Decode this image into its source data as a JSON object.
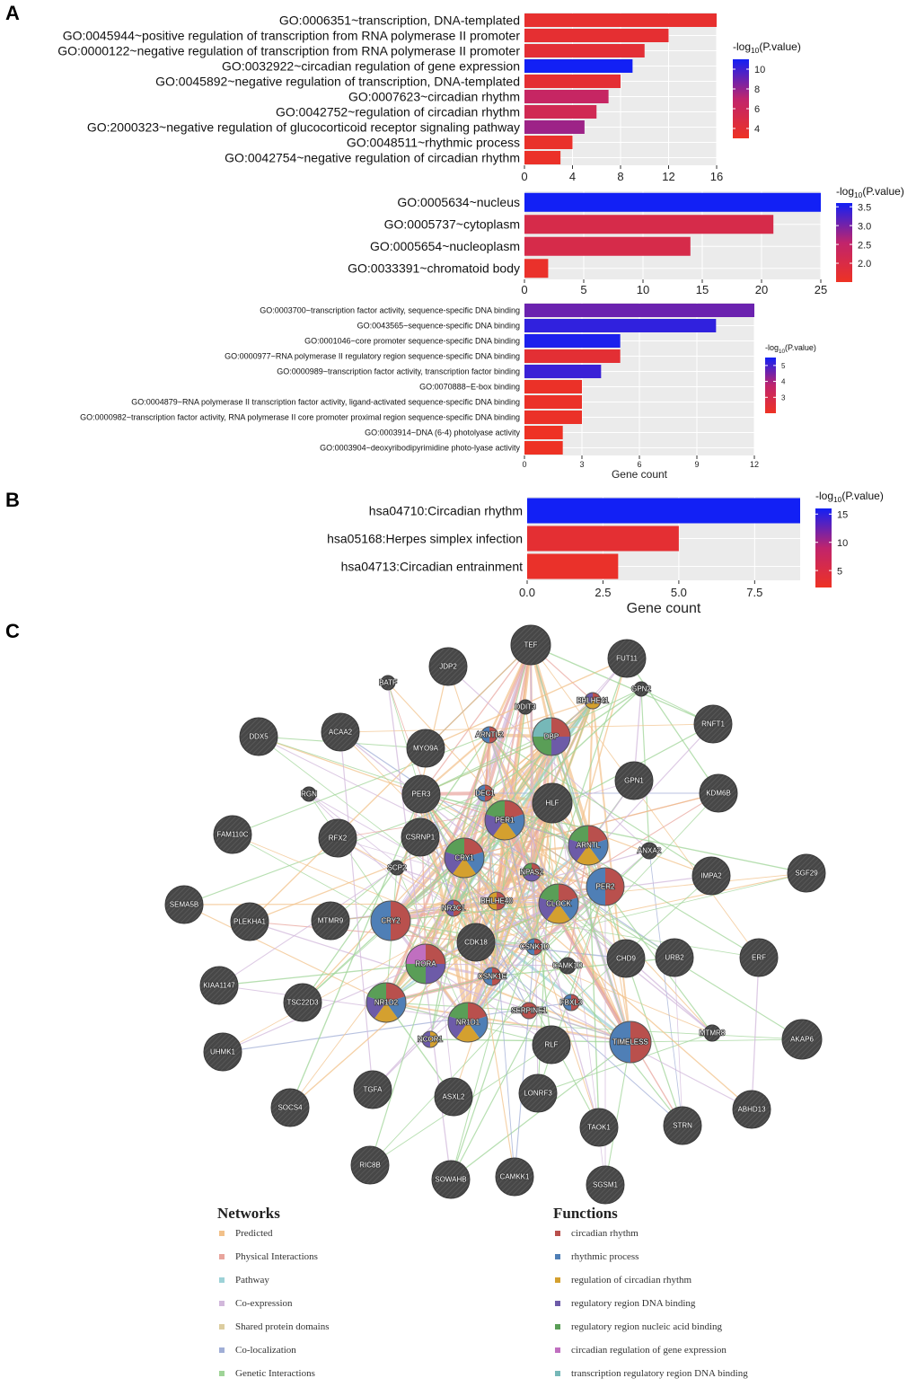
{
  "panel_labels": [
    "A",
    "B",
    "C"
  ],
  "colors": {
    "low_p": "#ee3224",
    "mid_p": "#c0246c",
    "high_p": "#1220f5",
    "panel_bg": "#ebebeb",
    "node": "#4a4a4a"
  },
  "chart_data": [
    {
      "type": "bar",
      "orientation": "horizontal",
      "title": "",
      "xlabel": "",
      "xlim": [
        0,
        16
      ],
      "xticks": [
        "0",
        "4",
        "8",
        "12",
        "16"
      ],
      "categories": [
        "GO:0006351~transcription, DNA-templated",
        "GO:0045944~positive regulation of transcription from RNA polymerase II promoter",
        "GO:0000122~negative regulation of transcription from RNA polymerase II promoter",
        "GO:0032922~circadian regulation of gene expression",
        "GO:0045892~negative regulation of transcription, DNA-templated",
        "GO:0007623~circadian rhythm",
        "GO:0042752~regulation of circadian rhythm",
        "GO:2000323~negative regulation of glucocorticoid receptor signaling pathway",
        "GO:0048511~rhythmic process",
        "GO:0042754~negative regulation of circadian rhythm"
      ],
      "values": [
        16,
        12,
        10,
        9,
        8,
        7,
        6,
        5,
        4,
        3
      ],
      "neg_log10_p": [
        3.6,
        3.8,
        4.0,
        11.0,
        3.9,
        6.5,
        5.6,
        7.8,
        3.4,
        3.3
      ],
      "legend": {
        "title_prefix": "-log",
        "title_sub": "10",
        "title_suffix": "(P.value)",
        "ticks": [
          "10",
          "8",
          "6",
          "4"
        ],
        "range": [
          3,
          11
        ]
      }
    },
    {
      "type": "bar",
      "orientation": "horizontal",
      "title": "",
      "xlabel": "",
      "xlim": [
        0,
        25
      ],
      "xticks": [
        "0",
        "5",
        "10",
        "15",
        "20",
        "25"
      ],
      "categories": [
        "GO:0005634~nucleus",
        "GO:0005737~cytoplasm",
        "GO:0005654~nucleoplasm",
        "GO:0033391~chromatoid body"
      ],
      "values": [
        25,
        21,
        14,
        2
      ],
      "neg_log10_p": [
        3.6,
        2.05,
        2.05,
        1.6
      ],
      "legend": {
        "title_prefix": "-log",
        "title_sub": "10",
        "title_suffix": "(P.value)",
        "ticks": [
          "3.5",
          "3.0",
          "2.5",
          "2.0"
        ],
        "range": [
          1.5,
          3.6
        ]
      }
    },
    {
      "type": "bar",
      "orientation": "horizontal",
      "title": "",
      "xlabel": "Gene count",
      "xlim": [
        0,
        12
      ],
      "xticks": [
        "0",
        "3",
        "6",
        "9",
        "12"
      ],
      "categories": [
        "GO:0003700~transcription factor activity, sequence-specific DNA binding",
        "GO:0043565~sequence-specific DNA binding",
        "GO:0001046~core promoter sequence-specific DNA binding",
        "GO:0000977~RNA polymerase II regulatory region sequence-specific DNA binding",
        "GO:0000989~transcription factor activity, transcription factor binding",
        "GO:0070888~E-box binding",
        "GO:0004879~RNA polymerase II transcription factor activity, ligand-activated sequence-specific DNA binding",
        "GO:0000982~transcription factor activity, RNA polymerase II core promoter proximal region sequence-specific DNA binding",
        "GO:0003914~DNA (6-4) photolyase activity",
        "GO:0003904~deoxyribodipyrimidine photo-lyase activity"
      ],
      "values": [
        12,
        10,
        5,
        5,
        4,
        3,
        3,
        3,
        2,
        2
      ],
      "neg_log10_p": [
        4.6,
        5.2,
        5.4,
        2.4,
        5.1,
        2.1,
        2.1,
        2.1,
        2.0,
        2.0
      ],
      "legend": {
        "title_prefix": "-log",
        "title_sub": "10",
        "title_suffix": "(P.value)",
        "ticks": [
          "5",
          "4",
          "3"
        ],
        "range": [
          2,
          5.5
        ]
      }
    },
    {
      "type": "bar",
      "orientation": "horizontal",
      "title": "",
      "xlabel": "Gene count",
      "xlim": [
        0,
        9
      ],
      "xticks": [
        "0.0",
        "2.5",
        "5.0",
        "7.5"
      ],
      "categories": [
        "hsa04710:Circadian rhythm",
        "hsa05168:Herpes simplex infection",
        "hsa04713:Circadian entrainment"
      ],
      "values": [
        9,
        5,
        3
      ],
      "neg_log10_p": [
        16.0,
        3.5,
        2.6
      ],
      "legend": {
        "title_prefix": "-log",
        "title_sub": "10",
        "title_suffix": "(P.value)",
        "ticks": [
          "15",
          "10",
          "5"
        ],
        "range": [
          2,
          16
        ]
      }
    }
  ],
  "network": {
    "nodes": [
      "TEF",
      "JDP2",
      "FUT11",
      "BATF",
      "DDIT3",
      "BHLHE41",
      "GPN2",
      "DDX5",
      "ACAA2",
      "ARNTL2",
      "DBP",
      "MYO9A",
      "RNFT1",
      "RGN",
      "DEC1",
      "PER3",
      "HLF",
      "GPN1",
      "KDM6B",
      "PER1",
      "FAM110C",
      "RFX2",
      "CSRNP1",
      "ARNTL",
      "ANXA2",
      "SCP2",
      "CRY1",
      "NPAS2",
      "IMPA2",
      "SGF29",
      "SEMA5B",
      "BHLHE40",
      "PER2",
      "CLOCK",
      "NR3C1",
      "PLEKHA1",
      "MTMR9",
      "CRY2",
      "CDK18",
      "CSNK1D",
      "RORA",
      "CAMK1D",
      "CHD9",
      "URB2",
      "ERF",
      "CSNK1E",
      "KIAA1147",
      "TSC22D3",
      "NR1D2",
      "FBXL3",
      "SERPINE1",
      "NR1D1",
      "NCOR1",
      "RLF",
      "TIMELESS",
      "MTMR8",
      "AKAP6",
      "UHMK1",
      "TGFA",
      "ASXL2",
      "LONRF3",
      "SOCS4",
      "TAOK1",
      "STRN",
      "ABHD13",
      "RIC8B",
      "SOWAHB",
      "CAMKK1",
      "SGSM1"
    ],
    "legend": {
      "networks_title": "Networks",
      "functions_title": "Functions",
      "networks": [
        {
          "label": "Predicted",
          "color": "#f2c18a"
        },
        {
          "label": "Physical Interactions",
          "color": "#e8a49c"
        },
        {
          "label": "Pathway",
          "color": "#9dd2d7"
        },
        {
          "label": "Co-expression",
          "color": "#d2b8db"
        },
        {
          "label": "Shared protein domains",
          "color": "#dccd9f"
        },
        {
          "label": "Co-localization",
          "color": "#a0aed6"
        },
        {
          "label": "Genetic Interactions",
          "color": "#9fd497"
        }
      ],
      "functions": [
        {
          "label": "circadian rhythm",
          "color": "#b9504d"
        },
        {
          "label": "rhythmic process",
          "color": "#4f7fb6"
        },
        {
          "label": "regulation of circadian rhythm",
          "color": "#d4a02f"
        },
        {
          "label": "regulatory region DNA binding",
          "color": "#6d5ba8"
        },
        {
          "label": "regulatory region nucleic acid binding",
          "color": "#5a9e57"
        },
        {
          "label": "circadian regulation of gene expression",
          "color": "#c06fc0"
        },
        {
          "label": "transcription regulatory region DNA binding",
          "color": "#76b8b8"
        }
      ]
    }
  }
}
